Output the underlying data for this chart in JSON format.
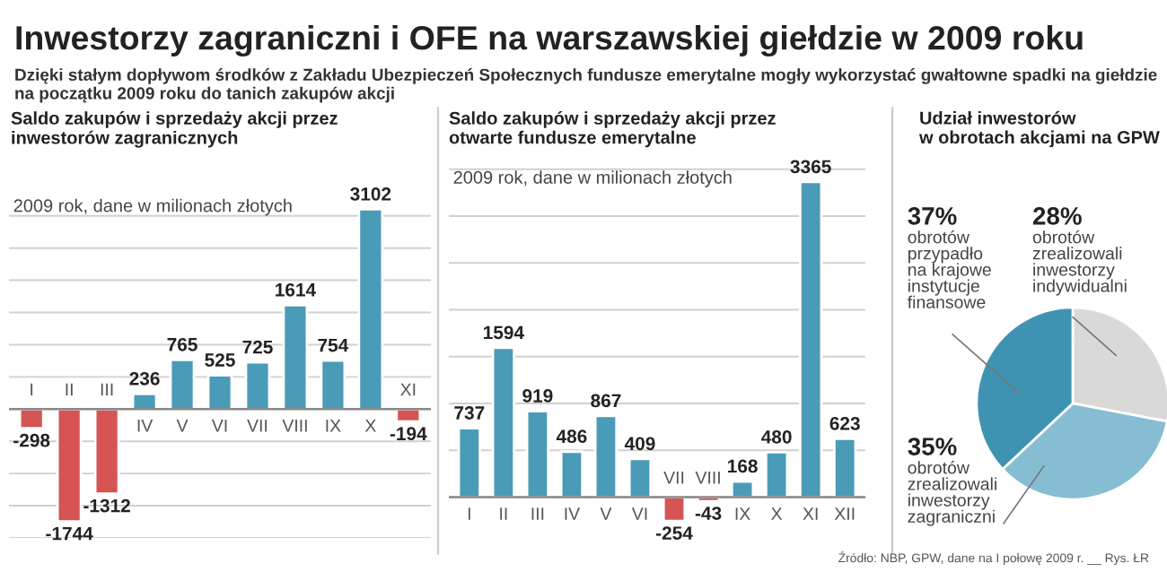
{
  "chart_data": [
    {
      "type": "other",
      "title": "Inwestorzy zagraniczni i OFE na warszawskiej giełdzie w 2009 roku",
      "subtitle": "Dzięki stałym dopływom środków z Zakładu Ubezpieczeń Społecznych fundusze emerytalne mogły wykorzystać gwałtowne spadki na giełdzie\nna początku 2009 roku do tanich zakupów akcji",
      "annotations": [
        "Źródło: NBP, GPW, dane na I połowę 2009 r. __ Rys. ŁR"
      ]
    },
    {
      "type": "bar",
      "title": "Saldo zakupów i sprzedaży akcji przez\ninwestorów zagranicznych",
      "subtitle": "2009 rok, dane w milionach złotych",
      "categories": [
        "I",
        "II",
        "III",
        "IV",
        "V",
        "VI",
        "VII",
        "VIII",
        "IX",
        "X",
        "XI"
      ],
      "values": [
        -298,
        -1744,
        -1312,
        236,
        765,
        525,
        725,
        1614,
        754,
        3102,
        -194
      ],
      "colors": [
        "#d65454",
        "#d65454",
        "#d65454",
        "#4a9bb8",
        "#4a9bb8",
        "#4a9bb8",
        "#4a9bb8",
        "#4a9bb8",
        "#4a9bb8",
        "#4a9bb8",
        "#d65454"
      ],
      "yticks": [
        {
          "value": -2000,
          "label": null
        },
        {
          "value": -1500,
          "label": null
        },
        {
          "value": -1000,
          "label": null
        },
        {
          "value": -500,
          "label": null
        },
        {
          "value": 0,
          "label": null
        },
        {
          "value": 500,
          "label": null
        },
        {
          "value": 1000,
          "label": null
        },
        {
          "value": 1500,
          "label": null
        },
        {
          "value": 2000,
          "label": null
        },
        {
          "value": 2500,
          "label": null
        },
        {
          "value": 3000,
          "label": null
        }
      ],
      "tick_labels": "x",
      "grid": "y",
      "data_labels": true
    },
    {
      "type": "bar",
      "title": "Saldo zakupów i sprzedaży akcji przez\notwarte fundusze emerytalne",
      "subtitle": "2009 rok, dane w milionach złotych",
      "categories": [
        "I",
        "II",
        "III",
        "IV",
        "V",
        "VI",
        "VII",
        "VIII",
        "IX",
        "X",
        "XI",
        "XII"
      ],
      "values": [
        737,
        1594,
        919,
        486,
        867,
        409,
        -254,
        -43,
        168,
        480,
        3365,
        623
      ],
      "colors": [
        "#4a9bb8",
        "#4a9bb8",
        "#4a9bb8",
        "#4a9bb8",
        "#4a9bb8",
        "#4a9bb8",
        "#d65454",
        "#d65454",
        "#4a9bb8",
        "#4a9bb8",
        "#4a9bb8",
        "#4a9bb8"
      ],
      "yticks": [
        {
          "value": 0,
          "label": null
        },
        {
          "value": 500,
          "label": null
        },
        {
          "value": 1000,
          "label": null
        },
        {
          "value": 1500,
          "label": null
        },
        {
          "value": 2000,
          "label": null
        },
        {
          "value": 2500,
          "label": null
        },
        {
          "value": 3000,
          "label": null
        },
        {
          "value": 3500,
          "label": null
        }
      ],
      "tick_labels": "x",
      "grid": "y",
      "data_labels": true
    },
    {
      "type": "pie",
      "title": "Udział inwestorów\nw obrotach akcjami na GPW",
      "categories": [
        "obrotów\nzrealizowali\ninwestorzy\nindywidualni",
        "obrotów\nzrealizowali\ninwestorzy\nzagraniczni",
        "obrotów\nprzypadło\nna krajowe\ninstytucje\nfinansowe"
      ],
      "values": [
        28,
        35,
        37
      ],
      "value_labels": [
        "28%",
        "35%",
        "37%"
      ],
      "colors": [
        "#d9d9d9",
        "#86bdd3",
        "#3f93b2"
      ]
    }
  ]
}
